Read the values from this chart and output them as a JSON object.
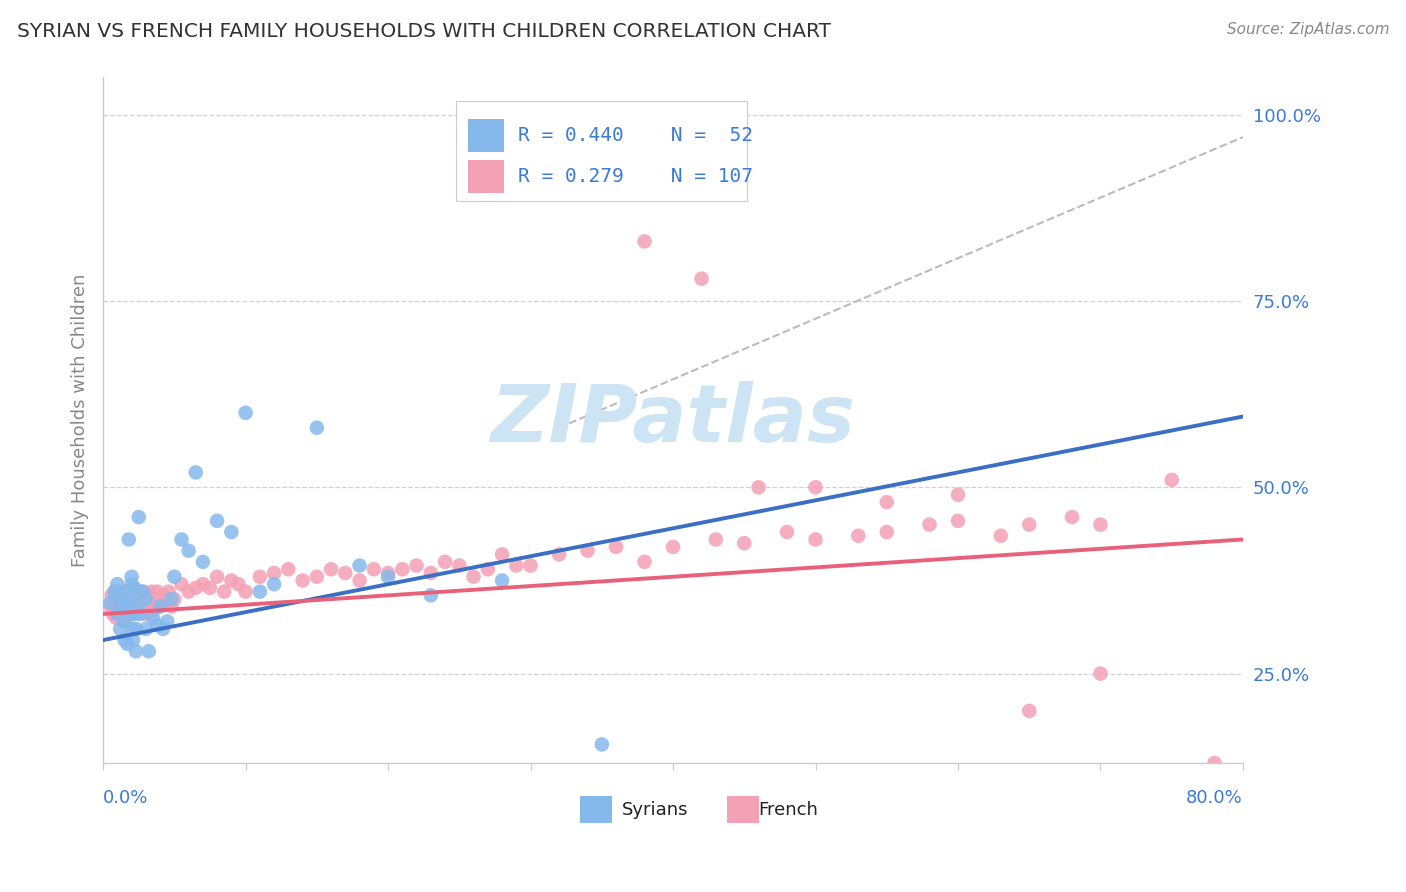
{
  "title": "SYRIAN VS FRENCH FAMILY HOUSEHOLDS WITH CHILDREN CORRELATION CHART",
  "source_text": "Source: ZipAtlas.com",
  "ylabel": "Family Households with Children",
  "xlim": [
    0.0,
    0.8
  ],
  "ylim": [
    0.13,
    1.05
  ],
  "yticks_right": [
    0.25,
    0.5,
    0.75,
    1.0
  ],
  "yticklabels_right": [
    "25.0%",
    "50.0%",
    "75.0%",
    "100.0%"
  ],
  "legend_r_syrian": "R = 0.440",
  "legend_n_syrian": "N =  52",
  "legend_r_french": "R = 0.279",
  "legend_n_french": "N = 107",
  "color_syrian": "#85b9ec",
  "color_french": "#f4a0b5",
  "color_trend_syrian": "#3a6fc4",
  "color_trend_french": "#e8607a",
  "color_dashed": "#bbbbbb",
  "color_grid": "#cccccc",
  "color_title": "#333333",
  "color_axis_labels": "#3a7bd5",
  "color_legend_text_r": "#3a7bd5",
  "color_legend_text_n": "#3a7bd5",
  "watermark_color": "#cde4f5",
  "background_color": "#ffffff",
  "syrian_x": [
    0.005,
    0.008,
    0.01,
    0.01,
    0.01,
    0.012,
    0.013,
    0.015,
    0.015,
    0.015,
    0.016,
    0.017,
    0.018,
    0.018,
    0.019,
    0.02,
    0.02,
    0.02,
    0.021,
    0.022,
    0.022,
    0.023,
    0.023,
    0.025,
    0.025,
    0.026,
    0.028,
    0.03,
    0.03,
    0.032,
    0.035,
    0.038,
    0.04,
    0.042,
    0.045,
    0.048,
    0.05,
    0.055,
    0.06,
    0.065,
    0.07,
    0.08,
    0.09,
    0.1,
    0.11,
    0.12,
    0.15,
    0.18,
    0.2,
    0.23,
    0.28,
    0.35
  ],
  "syrian_y": [
    0.345,
    0.36,
    0.33,
    0.355,
    0.37,
    0.31,
    0.345,
    0.32,
    0.295,
    0.34,
    0.36,
    0.29,
    0.43,
    0.35,
    0.335,
    0.37,
    0.31,
    0.38,
    0.295,
    0.365,
    0.33,
    0.28,
    0.31,
    0.345,
    0.46,
    0.33,
    0.36,
    0.31,
    0.35,
    0.28,
    0.325,
    0.315,
    0.34,
    0.31,
    0.32,
    0.35,
    0.38,
    0.43,
    0.415,
    0.52,
    0.4,
    0.455,
    0.44,
    0.6,
    0.36,
    0.37,
    0.58,
    0.395,
    0.38,
    0.355,
    0.375,
    0.155
  ],
  "french_x": [
    0.005,
    0.006,
    0.007,
    0.008,
    0.008,
    0.009,
    0.01,
    0.01,
    0.011,
    0.012,
    0.012,
    0.013,
    0.013,
    0.014,
    0.015,
    0.015,
    0.015,
    0.016,
    0.016,
    0.017,
    0.017,
    0.018,
    0.018,
    0.019,
    0.019,
    0.02,
    0.02,
    0.02,
    0.021,
    0.021,
    0.022,
    0.022,
    0.023,
    0.023,
    0.024,
    0.025,
    0.025,
    0.026,
    0.026,
    0.027,
    0.028,
    0.028,
    0.029,
    0.03,
    0.03,
    0.031,
    0.032,
    0.033,
    0.034,
    0.035,
    0.036,
    0.037,
    0.038,
    0.039,
    0.04,
    0.042,
    0.044,
    0.046,
    0.048,
    0.05,
    0.055,
    0.06,
    0.065,
    0.07,
    0.075,
    0.08,
    0.085,
    0.09,
    0.095,
    0.1,
    0.11,
    0.12,
    0.13,
    0.14,
    0.15,
    0.16,
    0.17,
    0.18,
    0.19,
    0.2,
    0.21,
    0.22,
    0.23,
    0.24,
    0.25,
    0.26,
    0.27,
    0.28,
    0.29,
    0.3,
    0.32,
    0.34,
    0.36,
    0.38,
    0.4,
    0.43,
    0.45,
    0.48,
    0.5,
    0.53,
    0.55,
    0.58,
    0.6,
    0.63,
    0.65,
    0.68,
    0.7
  ],
  "french_y": [
    0.34,
    0.355,
    0.33,
    0.345,
    0.36,
    0.325,
    0.35,
    0.335,
    0.36,
    0.345,
    0.33,
    0.355,
    0.34,
    0.32,
    0.35,
    0.36,
    0.335,
    0.345,
    0.355,
    0.33,
    0.34,
    0.36,
    0.345,
    0.335,
    0.35,
    0.345,
    0.33,
    0.36,
    0.34,
    0.355,
    0.36,
    0.345,
    0.335,
    0.35,
    0.34,
    0.36,
    0.345,
    0.335,
    0.35,
    0.355,
    0.34,
    0.36,
    0.345,
    0.33,
    0.35,
    0.345,
    0.355,
    0.34,
    0.36,
    0.335,
    0.35,
    0.345,
    0.36,
    0.34,
    0.35,
    0.355,
    0.345,
    0.36,
    0.34,
    0.35,
    0.37,
    0.36,
    0.365,
    0.37,
    0.365,
    0.38,
    0.36,
    0.375,
    0.37,
    0.36,
    0.38,
    0.385,
    0.39,
    0.375,
    0.38,
    0.39,
    0.385,
    0.375,
    0.39,
    0.385,
    0.39,
    0.395,
    0.385,
    0.4,
    0.395,
    0.38,
    0.39,
    0.41,
    0.395,
    0.395,
    0.41,
    0.415,
    0.42,
    0.4,
    0.42,
    0.43,
    0.425,
    0.44,
    0.43,
    0.435,
    0.44,
    0.45,
    0.455,
    0.435,
    0.45,
    0.46,
    0.45
  ],
  "french_outliers_x": [
    0.38,
    0.42,
    0.46,
    0.5,
    0.55,
    0.6,
    0.65,
    0.7,
    0.75,
    0.78
  ],
  "french_outliers_y": [
    0.83,
    0.78,
    0.5,
    0.5,
    0.48,
    0.49,
    0.2,
    0.25,
    0.51,
    0.13
  ],
  "syrian_trend_x": [
    0.0,
    0.8
  ],
  "syrian_trend_y": [
    0.295,
    0.595
  ],
  "french_trend_x": [
    0.0,
    0.8
  ],
  "french_trend_y": [
    0.33,
    0.43
  ],
  "dashed_line_x": [
    0.32,
    0.8
  ],
  "dashed_line_y": [
    0.58,
    0.97
  ]
}
